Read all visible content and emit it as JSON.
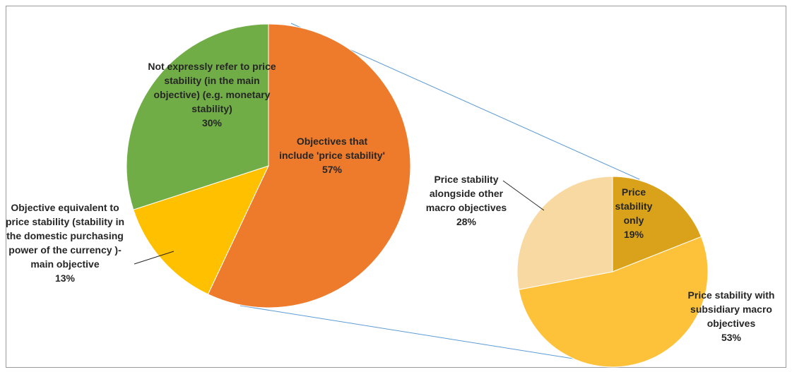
{
  "chart_data": [
    {
      "type": "pie",
      "categories": [
        "Objectives that include 'price stability'",
        "Objective equivalent to price stability (stability in the domestic purchasing power of the currency )- main objective",
        "Not expressly refer to price stability (in the main objective) (e.g. monetary stability)"
      ],
      "values": [
        57,
        13,
        30
      ],
      "value_labels": [
        "57%",
        "13%",
        "30%"
      ],
      "colors": [
        "#ee7a2c",
        "#ffc000",
        "#70ad47"
      ]
    },
    {
      "type": "pie",
      "categories": [
        "Price stability only",
        "Price stability with subsidiary macro objectives",
        "Price stability alongside other macro objectives"
      ],
      "values": [
        19,
        53,
        28
      ],
      "value_labels": [
        "19%",
        "53%",
        "28%"
      ],
      "colors": [
        "#d9a21a",
        "#fdc23a",
        "#f9d9a2"
      ]
    }
  ]
}
